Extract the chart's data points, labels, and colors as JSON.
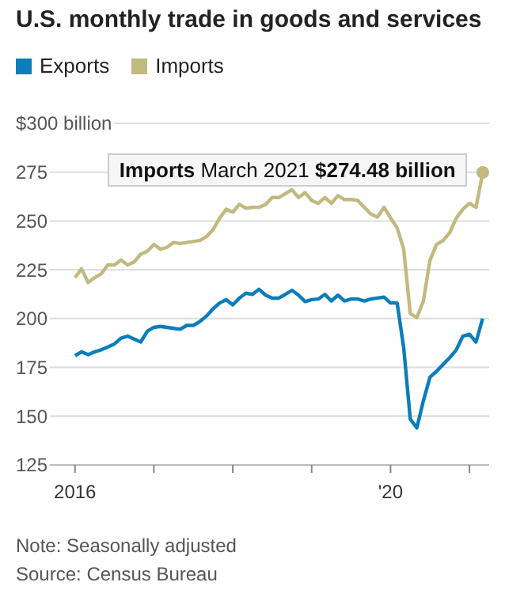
{
  "chart_data": {
    "type": "line",
    "title": "U.S. monthly trade in goods and services",
    "x": [
      "2016-01",
      "2016-02",
      "2016-03",
      "2016-04",
      "2016-05",
      "2016-06",
      "2016-07",
      "2016-08",
      "2016-09",
      "2016-10",
      "2016-11",
      "2016-12",
      "2017-01",
      "2017-02",
      "2017-03",
      "2017-04",
      "2017-05",
      "2017-06",
      "2017-07",
      "2017-08",
      "2017-09",
      "2017-10",
      "2017-11",
      "2017-12",
      "2018-01",
      "2018-02",
      "2018-03",
      "2018-04",
      "2018-05",
      "2018-06",
      "2018-07",
      "2018-08",
      "2018-09",
      "2018-10",
      "2018-11",
      "2018-12",
      "2019-01",
      "2019-02",
      "2019-03",
      "2019-04",
      "2019-05",
      "2019-06",
      "2019-07",
      "2019-08",
      "2019-09",
      "2019-10",
      "2019-11",
      "2019-12",
      "2020-01",
      "2020-02",
      "2020-03",
      "2020-04",
      "2020-05",
      "2020-06",
      "2020-07",
      "2020-08",
      "2020-09",
      "2020-10",
      "2020-11",
      "2020-12",
      "2021-01",
      "2021-02",
      "2021-03"
    ],
    "series": [
      {
        "name": "Exports",
        "color": "#0a7dba",
        "values": [
          181,
          183,
          181.5,
          183,
          184,
          185.5,
          187,
          190,
          191,
          189.5,
          188,
          193.5,
          195.5,
          196,
          195.5,
          195,
          194.5,
          196.5,
          196.5,
          198.5,
          201.3,
          205,
          208,
          209.7,
          207,
          210.5,
          213,
          212.4,
          215,
          212,
          210.5,
          210.5,
          212.4,
          214.5,
          212,
          208.7,
          209.7,
          210,
          212.4,
          209,
          212,
          209,
          210,
          210,
          209,
          210,
          210.5,
          211,
          208,
          208,
          185,
          148.5,
          144,
          158,
          170,
          173,
          176.5,
          180,
          184,
          191,
          192,
          188,
          200
        ]
      },
      {
        "name": "Imports",
        "color": "#c2b97f",
        "values": [
          221,
          225.5,
          218.5,
          221,
          223,
          227.5,
          227.5,
          230,
          227.5,
          229,
          233,
          234.5,
          238,
          235.5,
          236.5,
          239,
          238.5,
          239,
          239.5,
          240,
          242,
          245.5,
          251.5,
          256,
          254.5,
          258.5,
          256.5,
          257,
          257,
          258.5,
          262,
          262,
          264,
          266,
          262,
          264.5,
          260.5,
          259,
          262,
          259,
          263,
          261,
          261,
          260.5,
          257,
          253.5,
          252,
          257,
          251.5,
          246.5,
          235.5,
          202.5,
          200.5,
          209,
          230,
          238,
          240,
          244,
          251.5,
          256,
          259,
          257,
          274.48
        ]
      }
    ],
    "xlim": [
      "2015-04",
      "2021-04"
    ],
    "xticks": [
      {
        "value": "2016-01",
        "label": "2016"
      },
      {
        "value": "2017-01",
        "label": null
      },
      {
        "value": "2018-01",
        "label": null
      },
      {
        "value": "2019-01",
        "label": null
      },
      {
        "value": "2020-01",
        "label": "'20"
      },
      {
        "value": "2021-01",
        "label": null
      }
    ],
    "ylim": [
      125,
      300
    ],
    "yticks": [
      125,
      150,
      175,
      200,
      225,
      250,
      275,
      {
        "value": 300,
        "label": "$300 billion"
      }
    ],
    "grid": "y",
    "legend": "top left",
    "marker": "none",
    "line_style": "solid",
    "annotations": [
      {
        "text": "Imports March 2021 $274.48 billion",
        "x": "2021-03",
        "y": 274.48
      },
      "Note: Seasonally adjusted",
      "Source: Census Bureau"
    ]
  }
}
